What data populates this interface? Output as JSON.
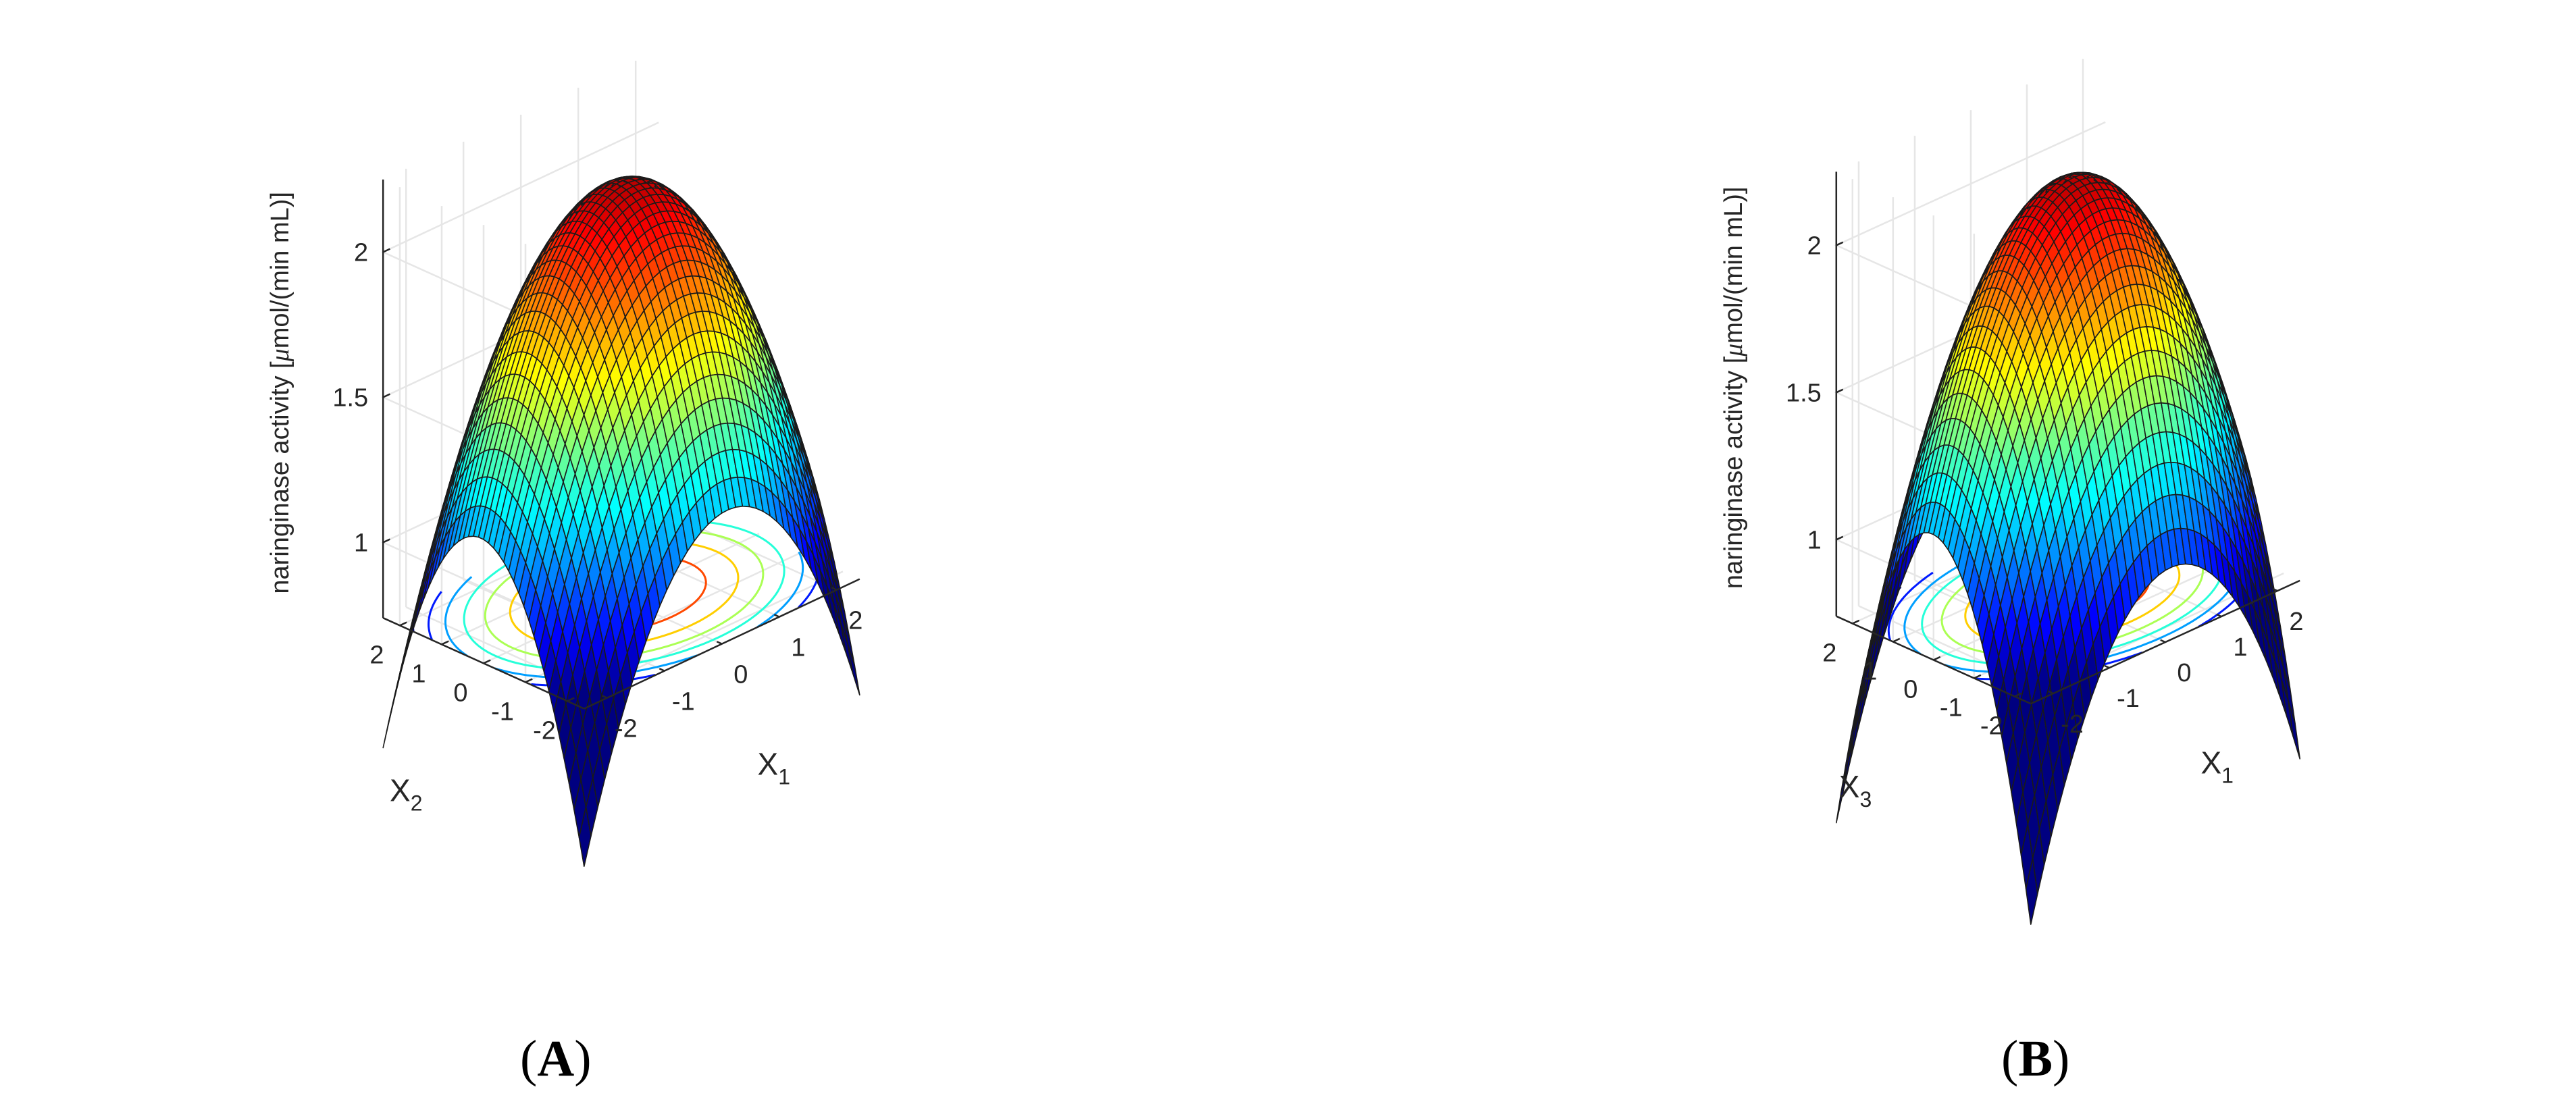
{
  "chart_data": [
    {
      "type": "surface3d",
      "panel_label": "A",
      "xlabel_main": "X",
      "xlabel_sub": "1",
      "ylabel_main": "X",
      "ylabel_sub": "2",
      "zlabel_prefix": "naringinase activity [",
      "zlabel_mu": "μ",
      "zlabel_suffix": "mol/(min mL)]",
      "xlim": [
        -2.4,
        2.4
      ],
      "ylim": [
        -2.4,
        2.4
      ],
      "zlim": [
        0.72,
        2.25
      ],
      "xticks": [
        -2,
        -1,
        0,
        1,
        2
      ],
      "yticks": [
        -2,
        -1,
        0,
        1,
        2
      ],
      "zticks": [
        1,
        1.5,
        2
      ],
      "xtick_labels": [
        "-2",
        "-1",
        "0",
        "1",
        "2"
      ],
      "ytick_labels": [
        "-2",
        "-1",
        "0",
        "1",
        "2"
      ],
      "ztick_labels": [
        "1",
        "1.5",
        "2"
      ],
      "model": {
        "b0": 2.16,
        "b1": 0.03,
        "b2": 0.02,
        "b11": -0.16,
        "b22": -0.16,
        "b12": 0.0
      },
      "surface_grid_n": 40,
      "contour_levels": [
        1.95,
        1.75,
        1.55,
        1.35,
        1.15,
        0.95,
        0.75
      ],
      "colormap": "jet",
      "grid": true
    },
    {
      "type": "surface3d",
      "panel_label": "B",
      "xlabel_main": "X",
      "xlabel_sub": "1",
      "ylabel_main": "X",
      "ylabel_sub": "3",
      "zlabel_prefix": "naringinase activity [",
      "zlabel_mu": "μ",
      "zlabel_suffix": "mol/(min mL)]",
      "xlim": [
        -2.4,
        2.4
      ],
      "ylim": [
        -2.4,
        2.4
      ],
      "zlim": [
        0.72,
        2.25
      ],
      "xticks": [
        -2,
        -1,
        0,
        1,
        2
      ],
      "yticks": [
        -2,
        -1,
        0,
        1,
        2
      ],
      "zticks": [
        1,
        1.5,
        2
      ],
      "xtick_labels": [
        "-2",
        "-1",
        "0",
        "1",
        "2"
      ],
      "ytick_labels": [
        "-2",
        "-1",
        "0",
        "1",
        "2"
      ],
      "ztick_labels": [
        "1",
        "1.5",
        "2"
      ],
      "model": {
        "b0": 2.16,
        "b1": 0.03,
        "b2": 0.01,
        "b11": -0.16,
        "b22": -0.2,
        "b12": 0.0
      },
      "surface_grid_n": 40,
      "contour_levels": [
        1.95,
        1.75,
        1.55,
        1.35,
        1.15,
        0.95,
        0.75
      ],
      "colormap": "jet",
      "grid": true
    }
  ],
  "panel_labels": {
    "a": "A",
    "b": "B"
  },
  "paren_open": "(",
  "paren_close": ")"
}
